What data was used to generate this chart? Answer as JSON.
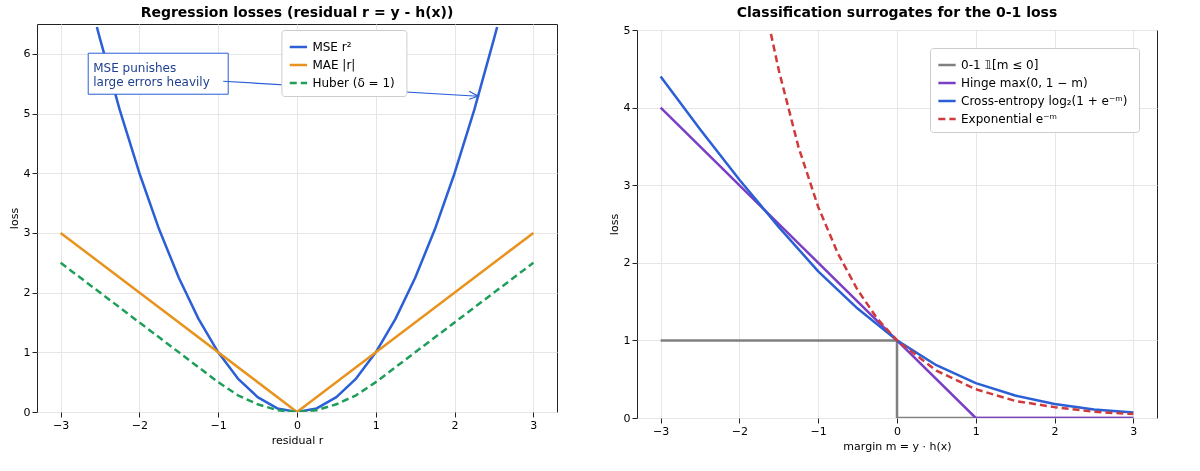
{
  "chart_data": [
    {
      "type": "line",
      "title": "Regression losses (residual r = y - h(x))",
      "xlabel": "residual r",
      "ylabel": "loss",
      "xlim": [
        -3.3,
        3.3
      ],
      "ylim": [
        0,
        6.5
      ],
      "xticks": [
        -3,
        -2,
        -1,
        0,
        1,
        2,
        3
      ],
      "yticks": [
        0,
        1,
        2,
        3,
        4,
        5,
        6
      ],
      "grid": true,
      "legend": "top",
      "annotations": [
        {
          "text": "MSE punishes\nlarge errors heavily",
          "x": 2.3,
          "y": 5.29
        }
      ],
      "series": [
        {
          "name": "MSE  r²",
          "color": "#2a5fd6",
          "line_style": "solid",
          "x": [
            -2.54,
            -2.5,
            -2.25,
            -2,
            -1.75,
            -1.5,
            -1.25,
            -1,
            -0.75,
            -0.5,
            -0.25,
            0,
            0.25,
            0.5,
            0.75,
            1,
            1.25,
            1.5,
            1.75,
            2,
            2.25,
            2.5,
            2.54
          ],
          "values": [
            6.45,
            6.25,
            5.06,
            4,
            3.06,
            2.25,
            1.56,
            1,
            0.56,
            0.25,
            0.06,
            0,
            0.06,
            0.25,
            0.56,
            1,
            1.56,
            2.25,
            3.06,
            4,
            5.06,
            6.25,
            6.45
          ]
        },
        {
          "name": "MAE  |r|",
          "color": "#e8931e",
          "line_style": "solid",
          "x": [
            -3,
            0,
            3
          ],
          "values": [
            3,
            0,
            3
          ]
        },
        {
          "name": "Huber  (δ = 1)",
          "color": "#1f9e5a",
          "line_style": "dashed",
          "x": [
            -3,
            -2,
            -1,
            -0.75,
            -0.5,
            -0.25,
            0,
            0.25,
            0.5,
            0.75,
            1,
            2,
            3
          ],
          "values": [
            2.5,
            1.5,
            0.5,
            0.28,
            0.13,
            0.03,
            0,
            0.03,
            0.13,
            0.28,
            0.5,
            1.5,
            2.5
          ]
        }
      ]
    },
    {
      "type": "line",
      "title": "Classification surrogates for the 0-1 loss",
      "xlabel": "margin m = y · h(x)",
      "ylabel": "loss",
      "xlim": [
        -3.3,
        3.3
      ],
      "ylim": [
        0,
        5
      ],
      "xticks": [
        -3,
        -2,
        -1,
        0,
        1,
        2,
        3
      ],
      "yticks": [
        0,
        1,
        2,
        3,
        4,
        5
      ],
      "grid": true,
      "legend": "top right",
      "series": [
        {
          "name": "0-1  𝟙[m ≤ 0]",
          "color": "#808080",
          "line_style": "solid",
          "x": [
            -3,
            0,
            0,
            3
          ],
          "values": [
            1,
            1,
            0,
            0
          ]
        },
        {
          "name": "Hinge  max(0, 1 − m)",
          "color": "#7b3fc6",
          "line_style": "solid",
          "x": [
            -3,
            1,
            3
          ],
          "values": [
            4,
            0,
            0
          ]
        },
        {
          "name": "Cross-entropy  log₂(1 + e⁻ᵐ)",
          "color": "#2a5fd6",
          "line_style": "solid",
          "x": [
            -3,
            -2.5,
            -2,
            -1.5,
            -1,
            -0.5,
            0,
            0.5,
            1,
            1.5,
            2,
            2.5,
            3
          ],
          "values": [
            4.4,
            3.72,
            3.07,
            2.46,
            1.89,
            1.41,
            1,
            0.68,
            0.45,
            0.29,
            0.18,
            0.11,
            0.07
          ]
        },
        {
          "name": "Exponential  e⁻ᵐ",
          "color": "#d03a3a",
          "line_style": "dashed",
          "x": [
            -1.6,
            -1.5,
            -1.25,
            -1,
            -0.75,
            -0.5,
            -0.25,
            0,
            0.5,
            1,
            1.5,
            2,
            2.5,
            3
          ],
          "values": [
            4.95,
            4.48,
            3.49,
            2.72,
            2.12,
            1.65,
            1.28,
            1,
            0.61,
            0.37,
            0.22,
            0.14,
            0.08,
            0.05
          ]
        }
      ]
    }
  ]
}
